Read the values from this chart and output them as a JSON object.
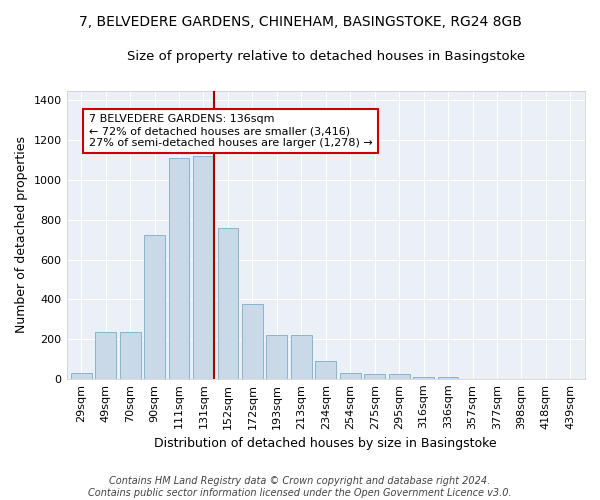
{
  "title": "7, BELVEDERE GARDENS, CHINEHAM, BASINGSTOKE, RG24 8GB",
  "subtitle": "Size of property relative to detached houses in Basingstoke",
  "xlabel": "Distribution of detached houses by size in Basingstoke",
  "ylabel": "Number of detached properties",
  "categories": [
    "29sqm",
    "49sqm",
    "70sqm",
    "90sqm",
    "111sqm",
    "131sqm",
    "152sqm",
    "172sqm",
    "193sqm",
    "213sqm",
    "234sqm",
    "254sqm",
    "275sqm",
    "295sqm",
    "316sqm",
    "336sqm",
    "357sqm",
    "377sqm",
    "398sqm",
    "418sqm",
    "439sqm"
  ],
  "bar_heights": [
    30,
    235,
    235,
    725,
    1110,
    1120,
    760,
    375,
    220,
    220,
    90,
    30,
    25,
    25,
    10,
    10,
    0,
    0,
    0,
    0,
    0
  ],
  "bar_color": "#c9d9e8",
  "bar_edge_color": "#7bacc9",
  "vline_color": "#aa0000",
  "annotation_text": "7 BELVEDERE GARDENS: 136sqm\n← 72% of detached houses are smaller (3,416)\n27% of semi-detached houses are larger (1,278) →",
  "annotation_box_facecolor": "#ffffff",
  "annotation_box_edgecolor": "#cc0000",
  "ylim": [
    0,
    1450
  ],
  "yticks": [
    0,
    200,
    400,
    600,
    800,
    1000,
    1200,
    1400
  ],
  "footer": "Contains HM Land Registry data © Crown copyright and database right 2024.\nContains public sector information licensed under the Open Government Licence v3.0.",
  "bg_color": "#eaf0f6",
  "title_fontsize": 10,
  "subtitle_fontsize": 9.5,
  "ylabel_fontsize": 9,
  "xlabel_fontsize": 9,
  "tick_fontsize": 8,
  "annotation_fontsize": 8,
  "footer_fontsize": 7
}
